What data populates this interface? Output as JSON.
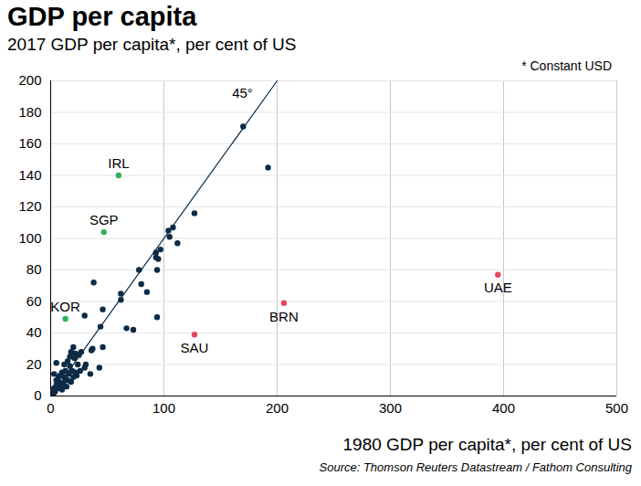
{
  "chart_data": {
    "type": "scatter",
    "title": "GDP per capita",
    "subtitle": "2017 GDP per capita*, per cent of US",
    "note": "* Constant USD",
    "x_label": "1980 GDP per capita*, per cent of US",
    "source": "Source: Thomson Reuters Datastream / Fathom Consulting",
    "x": [
      60,
      47,
      13,
      127,
      206,
      395,
      170,
      192,
      127,
      104,
      105,
      108,
      112,
      93,
      93,
      97,
      95,
      94,
      78,
      80,
      62,
      62,
      85,
      94,
      73,
      67,
      38,
      46,
      44,
      30,
      46,
      37,
      36,
      43,
      20,
      18,
      22,
      25,
      20,
      27,
      31,
      30,
      26,
      23,
      17,
      15,
      13,
      10,
      8,
      5,
      3,
      12,
      15,
      18,
      7,
      5,
      3,
      2,
      1,
      4,
      6,
      9,
      11,
      14,
      16,
      20,
      22,
      10,
      2,
      1,
      3,
      5,
      7,
      12,
      13,
      8,
      19,
      24,
      17,
      21,
      35
    ],
    "values": [
      140,
      104,
      49,
      39,
      59,
      77,
      171,
      145,
      116,
      105,
      101,
      107,
      97,
      91,
      88,
      93,
      87,
      80,
      80,
      71,
      65,
      61,
      66,
      50,
      42,
      43,
      72,
      55,
      44,
      51,
      31,
      30,
      29,
      18,
      31,
      28,
      27,
      26,
      27,
      28,
      20,
      18,
      16,
      13,
      19,
      22,
      16,
      15,
      13,
      21,
      14,
      12,
      10,
      9,
      9,
      7,
      5,
      3,
      2,
      3,
      5,
      6,
      8,
      6,
      14,
      12,
      15,
      4,
      1,
      1,
      2,
      10,
      12,
      20,
      11,
      5,
      16,
      20,
      25,
      24,
      14
    ],
    "labels": [
      "IRL",
      "SGP",
      "KOR",
      "SAU",
      "BRN",
      "UAE",
      null,
      null,
      null,
      null,
      null,
      null,
      null,
      null,
      null,
      null,
      null,
      null,
      null,
      null,
      null,
      null,
      null,
      null,
      null,
      null,
      null,
      null,
      null,
      null,
      null,
      null,
      null,
      null,
      null,
      null,
      null,
      null,
      null,
      null,
      null,
      null,
      null,
      null,
      null,
      null,
      null,
      null,
      null,
      null,
      null,
      null,
      null,
      null,
      null,
      null,
      null,
      null,
      null,
      null,
      null,
      null,
      null,
      null,
      null,
      null,
      null,
      null,
      null,
      null,
      null,
      null,
      null,
      null,
      null,
      null,
      null,
      null,
      null,
      null,
      null
    ],
    "colors": [
      "#2eb35a",
      "#2eb35a",
      "#2eb35a",
      "#e8465c",
      "#e8465c",
      "#e8465c",
      "#0d2b45",
      "#0d2b45",
      "#0d2b45",
      "#0d2b45",
      "#0d2b45",
      "#0d2b45",
      "#0d2b45",
      "#0d2b45",
      "#0d2b45",
      "#0d2b45",
      "#0d2b45",
      "#0d2b45",
      "#0d2b45",
      "#0d2b45",
      "#0d2b45",
      "#0d2b45",
      "#0d2b45",
      "#0d2b45",
      "#0d2b45",
      "#0d2b45",
      "#0d2b45",
      "#0d2b45",
      "#0d2b45",
      "#0d2b45",
      "#0d2b45",
      "#0d2b45",
      "#0d2b45",
      "#0d2b45",
      "#0d2b45",
      "#0d2b45",
      "#0d2b45",
      "#0d2b45",
      "#0d2b45",
      "#0d2b45",
      "#0d2b45",
      "#0d2b45",
      "#0d2b45",
      "#0d2b45",
      "#0d2b45",
      "#0d2b45",
      "#0d2b45",
      "#0d2b45",
      "#0d2b45",
      "#0d2b45",
      "#0d2b45",
      "#0d2b45",
      "#0d2b45",
      "#0d2b45",
      "#0d2b45",
      "#0d2b45",
      "#0d2b45",
      "#0d2b45",
      "#0d2b45",
      "#0d2b45",
      "#0d2b45",
      "#0d2b45",
      "#0d2b45",
      "#0d2b45",
      "#0d2b45",
      "#0d2b45",
      "#0d2b45",
      "#0d2b45",
      "#0d2b45",
      "#0d2b45",
      "#0d2b45",
      "#0d2b45",
      "#0d2b45",
      "#0d2b45",
      "#0d2b45",
      "#0d2b45",
      "#0d2b45",
      "#0d2b45",
      "#0d2b45",
      "#0d2b45",
      "#0d2b45"
    ],
    "reference_line": {
      "x": [
        0,
        200
      ],
      "y": [
        0,
        200
      ],
      "label": "45°",
      "color": "#0d2b45"
    },
    "xlim": [
      0,
      500
    ],
    "ylim": [
      0,
      200
    ],
    "xticks": [
      0,
      100,
      200,
      300,
      400,
      500
    ],
    "yticks": [
      0,
      20,
      40,
      60,
      80,
      100,
      120,
      140,
      160,
      180,
      200
    ],
    "grid": true
  }
}
